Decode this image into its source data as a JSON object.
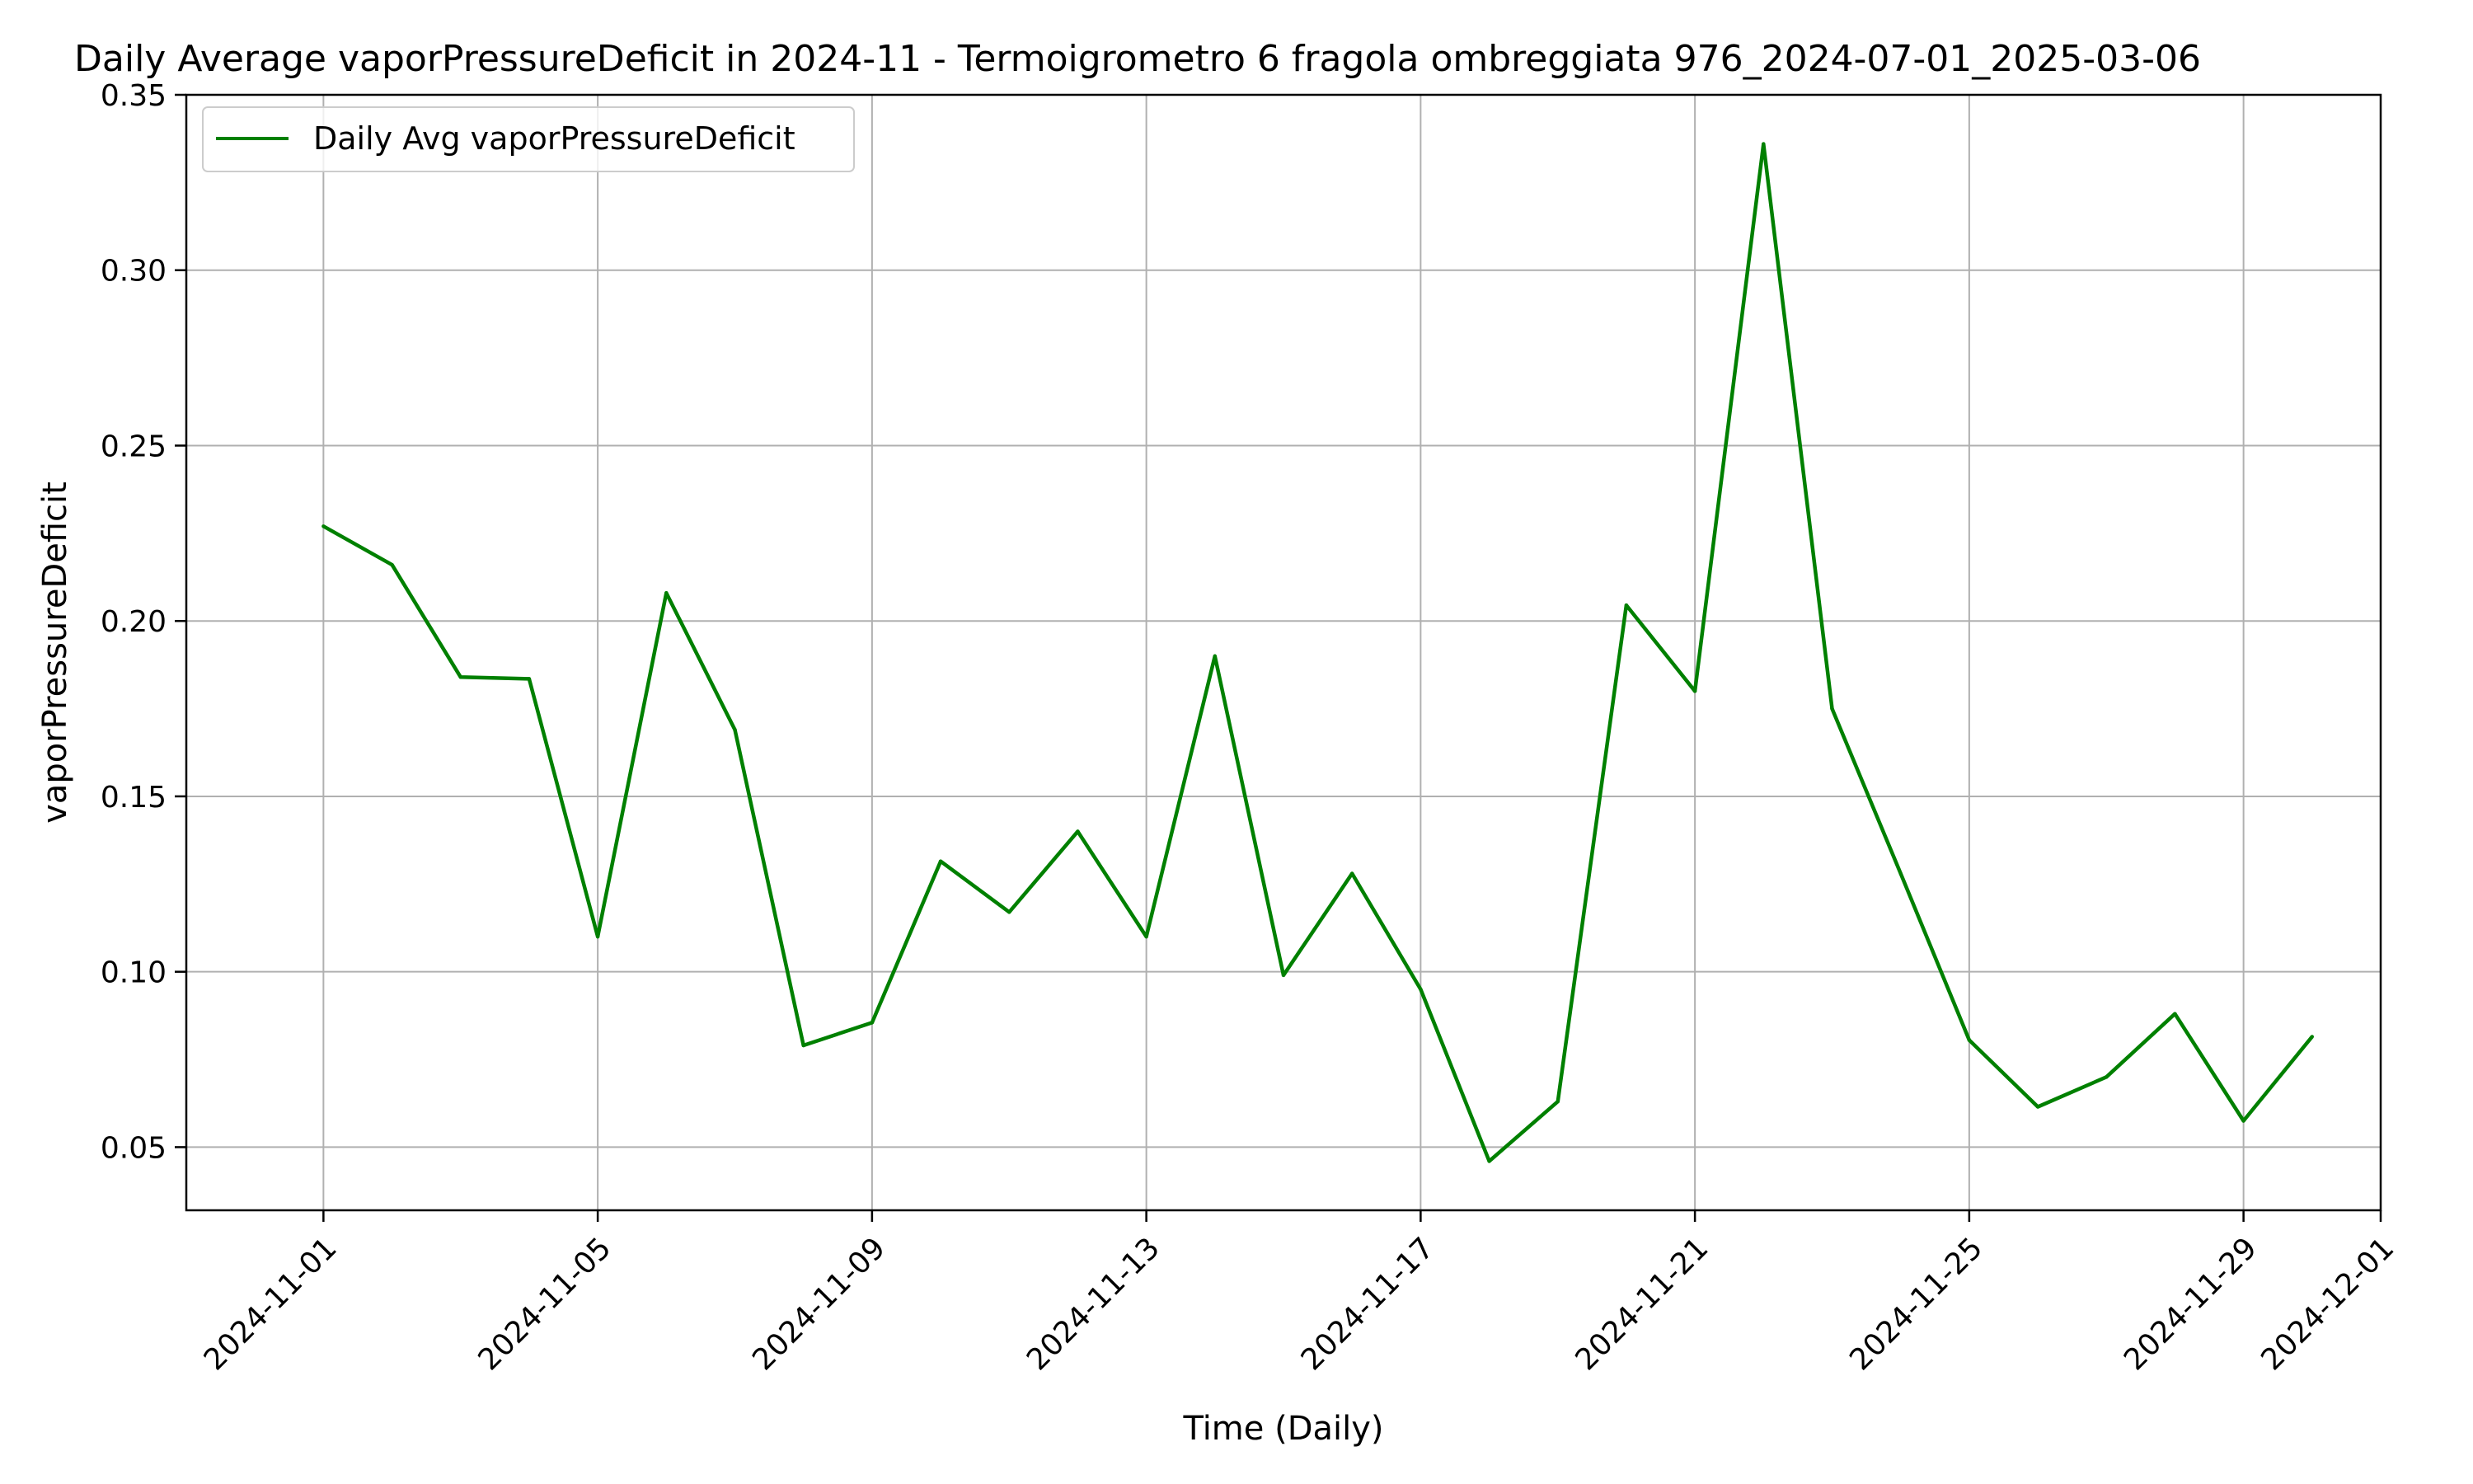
{
  "chart_data": {
    "type": "line",
    "title": "Daily Average vaporPressureDeficit in 2024-11 - Termoigrometro 6 fragola ombreggiata 976_2024-07-01_2025-03-06",
    "xlabel": "Time (Daily)",
    "ylabel": "vaporPressureDeficit",
    "x_ticks": [
      "2024-11-01",
      "2024-11-05",
      "2024-11-09",
      "2024-11-13",
      "2024-11-17",
      "2024-11-21",
      "2024-11-25",
      "2024-11-29",
      "2024-12-01"
    ],
    "y_ticks": [
      "0.05",
      "0.10",
      "0.15",
      "0.20",
      "0.25",
      "0.30",
      "0.35"
    ],
    "xlim": [
      "2024-10-30",
      "2024-12-01"
    ],
    "ylim": [
      0.032,
      0.35
    ],
    "grid": true,
    "legend_position": "top-left",
    "series": [
      {
        "name": "Daily Avg vaporPressureDeficit",
        "color": "#008000",
        "x": [
          "2024-11-01",
          "2024-11-02",
          "2024-11-03",
          "2024-11-04",
          "2024-11-05",
          "2024-11-06",
          "2024-11-07",
          "2024-11-08",
          "2024-11-09",
          "2024-11-10",
          "2024-11-11",
          "2024-11-12",
          "2024-11-13",
          "2024-11-14",
          "2024-11-15",
          "2024-11-16",
          "2024-11-17",
          "2024-11-18",
          "2024-11-19",
          "2024-11-20",
          "2024-11-21",
          "2024-11-22",
          "2024-11-23",
          "2024-11-24",
          "2024-11-25",
          "2024-11-26",
          "2024-11-27",
          "2024-11-28",
          "2024-11-29",
          "2024-11-30"
        ],
        "values": [
          0.227,
          0.216,
          0.184,
          0.1835,
          0.11,
          0.208,
          0.169,
          0.079,
          0.0855,
          0.1315,
          0.117,
          0.14,
          0.11,
          0.19,
          0.099,
          0.128,
          0.095,
          0.046,
          0.063,
          0.2045,
          0.18,
          0.336,
          0.175,
          0.128,
          0.0805,
          0.0615,
          0.07,
          0.088,
          0.0575,
          0.0815
        ]
      }
    ]
  }
}
